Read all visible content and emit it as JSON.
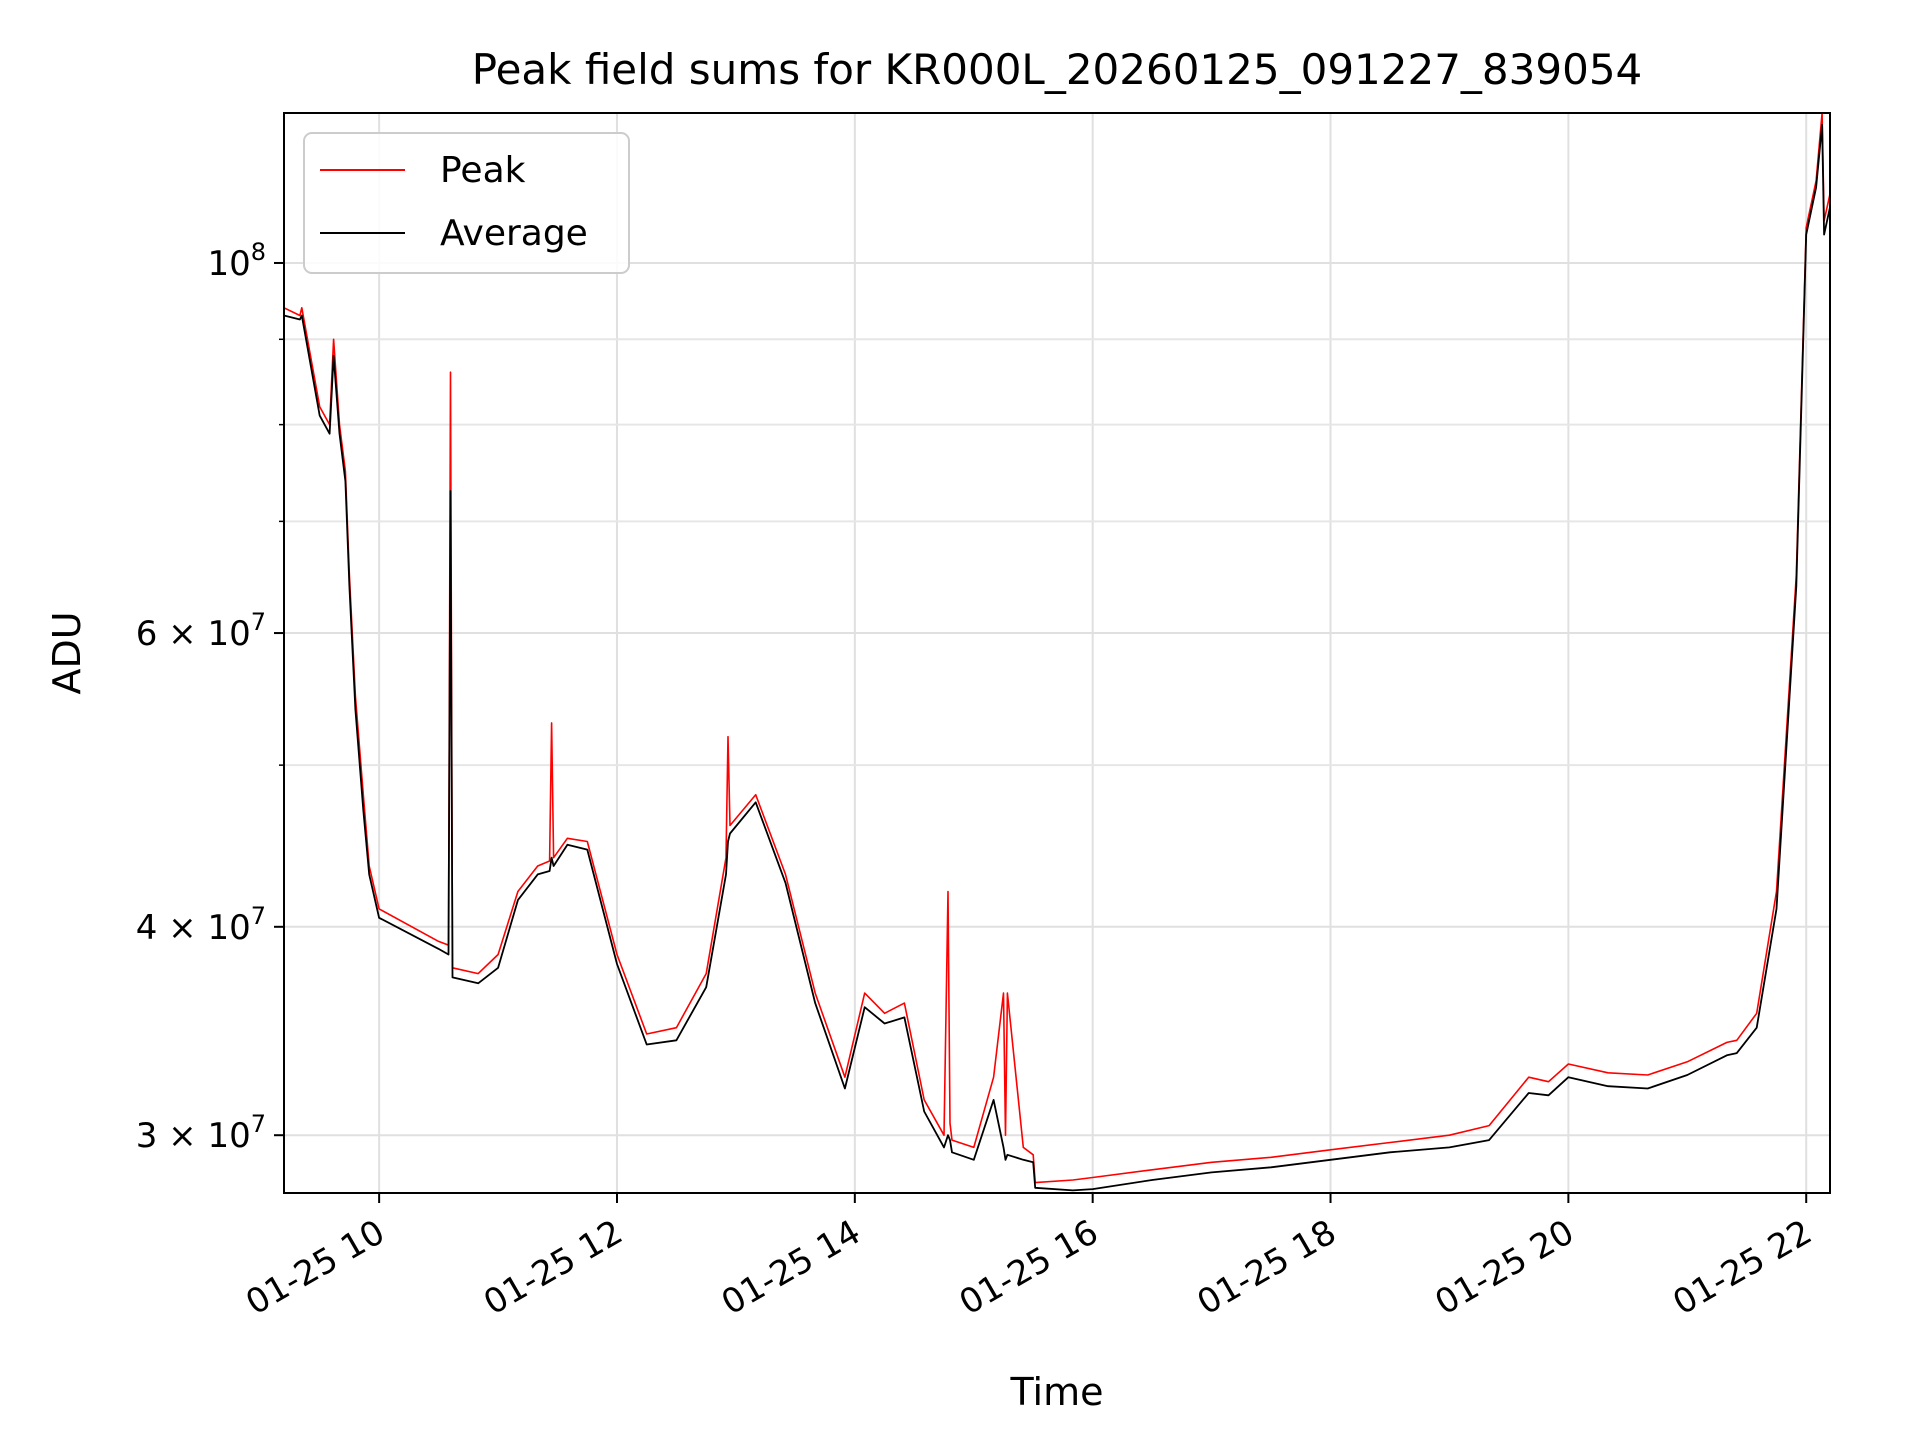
{
  "chart_data": {
    "type": "line",
    "title": "Peak field sums for KR000L_20260125_091227_839054",
    "xlabel": "Time",
    "ylabel": "ADU",
    "x_scale": "time",
    "y_scale": "log",
    "xlim": [
      "2026-01-25 09:12",
      "2026-01-25 22:12"
    ],
    "ylim": [
      27700000,
      123000000
    ],
    "x_ticks": [
      {
        "t": "2026-01-25 10:00",
        "label": "01-25 10"
      },
      {
        "t": "2026-01-25 12:00",
        "label": "01-25 12"
      },
      {
        "t": "2026-01-25 14:00",
        "label": "01-25 14"
      },
      {
        "t": "2026-01-25 16:00",
        "label": "01-25 16"
      },
      {
        "t": "2026-01-25 18:00",
        "label": "01-25 18"
      },
      {
        "t": "2026-01-25 20:00",
        "label": "01-25 20"
      },
      {
        "t": "2026-01-25 22:00",
        "label": "01-25 22"
      }
    ],
    "y_major_ticks": [
      {
        "value": 30000000,
        "base": "3",
        "exp": "7"
      },
      {
        "value": 40000000,
        "base": "4",
        "exp": "7"
      },
      {
        "value": 60000000,
        "base": "6",
        "exp": "7"
      },
      {
        "value": 100000000,
        "base": "",
        "exp": "8"
      }
    ],
    "y_minor_gridlines": [
      50000000,
      70000000,
      80000000,
      90000000
    ],
    "grid": true,
    "legend_position": "top-left",
    "series": [
      {
        "name": "Peak",
        "color": "#ff0000",
        "x": [
          "2026-01-25 09:12",
          "2026-01-25 09:20",
          "2026-01-25 09:21",
          "2026-01-25 09:30",
          "2026-01-25 09:35",
          "2026-01-25 09:37",
          "2026-01-25 09:40",
          "2026-01-25 09:43",
          "2026-01-25 09:45",
          "2026-01-25 09:48",
          "2026-01-25 09:52",
          "2026-01-25 09:55",
          "2026-01-25 10:00",
          "2026-01-25 10:30",
          "2026-01-25 10:35",
          "2026-01-25 10:36",
          "2026-01-25 10:37",
          "2026-01-25 10:50",
          "2026-01-25 11:00",
          "2026-01-25 11:10",
          "2026-01-25 11:20",
          "2026-01-25 11:26",
          "2026-01-25 11:27",
          "2026-01-25 11:28",
          "2026-01-25 11:35",
          "2026-01-25 11:45",
          "2026-01-25 12:00",
          "2026-01-25 12:15",
          "2026-01-25 12:30",
          "2026-01-25 12:45",
          "2026-01-25 12:55",
          "2026-01-25 12:56",
          "2026-01-25 12:57",
          "2026-01-25 13:10",
          "2026-01-25 13:25",
          "2026-01-25 13:40",
          "2026-01-25 13:55",
          "2026-01-25 14:05",
          "2026-01-25 14:15",
          "2026-01-25 14:25",
          "2026-01-25 14:35",
          "2026-01-25 14:45",
          "2026-01-25 14:47",
          "2026-01-25 14:48",
          "2026-01-25 14:49",
          "2026-01-25 15:00",
          "2026-01-25 15:10",
          "2026-01-25 15:15",
          "2026-01-25 15:16",
          "2026-01-25 15:17",
          "2026-01-25 15:25",
          "2026-01-25 15:30",
          "2026-01-25 15:31",
          "2026-01-25 15:50",
          "2026-01-25 16:00",
          "2026-01-25 16:30",
          "2026-01-25 17:00",
          "2026-01-25 17:30",
          "2026-01-25 18:00",
          "2026-01-25 18:30",
          "2026-01-25 19:00",
          "2026-01-25 19:20",
          "2026-01-25 19:40",
          "2026-01-25 19:50",
          "2026-01-25 20:00",
          "2026-01-25 20:20",
          "2026-01-25 20:40",
          "2026-01-25 21:00",
          "2026-01-25 21:20",
          "2026-01-25 21:25",
          "2026-01-25 21:35",
          "2026-01-25 21:45",
          "2026-01-25 21:55",
          "2026-01-25 22:00",
          "2026-01-25 22:05",
          "2026-01-25 22:08",
          "2026-01-25 22:09",
          "2026-01-25 22:12"
        ],
        "values": [
          94000000,
          93000000,
          94000000,
          82000000,
          80000000,
          90000000,
          80000000,
          75000000,
          65000000,
          55000000,
          48000000,
          43500000,
          41000000,
          39200000,
          39000000,
          86000000,
          37800000,
          37500000,
          38500000,
          42000000,
          43500000,
          43800000,
          53000000,
          44000000,
          45200000,
          45000000,
          38500000,
          34500000,
          34800000,
          37500000,
          44000000,
          52000000,
          46000000,
          48000000,
          43000000,
          36500000,
          32500000,
          36500000,
          35500000,
          36000000,
          31500000,
          30000000,
          42000000,
          30500000,
          29800000,
          29500000,
          32500000,
          36500000,
          30000000,
          36500000,
          29500000,
          29200000,
          28100000,
          28200000,
          28300000,
          28600000,
          28900000,
          29100000,
          29400000,
          29700000,
          30000000,
          30400000,
          32500000,
          32300000,
          33100000,
          32700000,
          32600000,
          33200000,
          34100000,
          34200000,
          35500000,
          42000000,
          65000000,
          105000000,
          112000000,
          123000000,
          106000000,
          110000000
        ]
      },
      {
        "name": "Average",
        "color": "#000000",
        "x": [
          "2026-01-25 09:12",
          "2026-01-25 09:20",
          "2026-01-25 09:21",
          "2026-01-25 09:30",
          "2026-01-25 09:35",
          "2026-01-25 09:37",
          "2026-01-25 09:40",
          "2026-01-25 09:43",
          "2026-01-25 09:45",
          "2026-01-25 09:48",
          "2026-01-25 09:52",
          "2026-01-25 09:55",
          "2026-01-25 10:00",
          "2026-01-25 10:30",
          "2026-01-25 10:35",
          "2026-01-25 10:36",
          "2026-01-25 10:37",
          "2026-01-25 10:50",
          "2026-01-25 11:00",
          "2026-01-25 11:10",
          "2026-01-25 11:20",
          "2026-01-25 11:26",
          "2026-01-25 11:27",
          "2026-01-25 11:28",
          "2026-01-25 11:35",
          "2026-01-25 11:45",
          "2026-01-25 12:00",
          "2026-01-25 12:15",
          "2026-01-25 12:30",
          "2026-01-25 12:45",
          "2026-01-25 12:55",
          "2026-01-25 12:56",
          "2026-01-25 12:57",
          "2026-01-25 13:10",
          "2026-01-25 13:25",
          "2026-01-25 13:40",
          "2026-01-25 13:55",
          "2026-01-25 14:05",
          "2026-01-25 14:15",
          "2026-01-25 14:25",
          "2026-01-25 14:35",
          "2026-01-25 14:45",
          "2026-01-25 14:47",
          "2026-01-25 14:48",
          "2026-01-25 14:49",
          "2026-01-25 15:00",
          "2026-01-25 15:10",
          "2026-01-25 15:15",
          "2026-01-25 15:16",
          "2026-01-25 15:17",
          "2026-01-25 15:25",
          "2026-01-25 15:30",
          "2026-01-25 15:31",
          "2026-01-25 15:50",
          "2026-01-25 16:00",
          "2026-01-25 16:30",
          "2026-01-25 17:00",
          "2026-01-25 17:30",
          "2026-01-25 18:00",
          "2026-01-25 18:30",
          "2026-01-25 19:00",
          "2026-01-25 19:20",
          "2026-01-25 19:40",
          "2026-01-25 19:50",
          "2026-01-25 20:00",
          "2026-01-25 20:20",
          "2026-01-25 20:40",
          "2026-01-25 21:00",
          "2026-01-25 21:20",
          "2026-01-25 21:25",
          "2026-01-25 21:35",
          "2026-01-25 21:45",
          "2026-01-25 21:55",
          "2026-01-25 22:00",
          "2026-01-25 22:05",
          "2026-01-25 22:08",
          "2026-01-25 22:09",
          "2026-01-25 22:12"
        ],
        "values": [
          93000000,
          92500000,
          93000000,
          81000000,
          79000000,
          88000000,
          79000000,
          74000000,
          64000000,
          54000000,
          47000000,
          43000000,
          40500000,
          38800000,
          38500000,
          73000000,
          37300000,
          37000000,
          37800000,
          41500000,
          43000000,
          43200000,
          44000000,
          43500000,
          44800000,
          44500000,
          38000000,
          34000000,
          34200000,
          36800000,
          43000000,
          45000000,
          45500000,
          47500000,
          42500000,
          36000000,
          32000000,
          35800000,
          35000000,
          35300000,
          31000000,
          29500000,
          30000000,
          29800000,
          29300000,
          29000000,
          31500000,
          29500000,
          29000000,
          29200000,
          29000000,
          28900000,
          27900000,
          27800000,
          27850000,
          28200000,
          28500000,
          28700000,
          29000000,
          29300000,
          29500000,
          29800000,
          31800000,
          31700000,
          32500000,
          32100000,
          32000000,
          32600000,
          33500000,
          33600000,
          34800000,
          41000000,
          64000000,
          104000000,
          111000000,
          121000000,
          104000000,
          108000000
        ]
      }
    ]
  }
}
